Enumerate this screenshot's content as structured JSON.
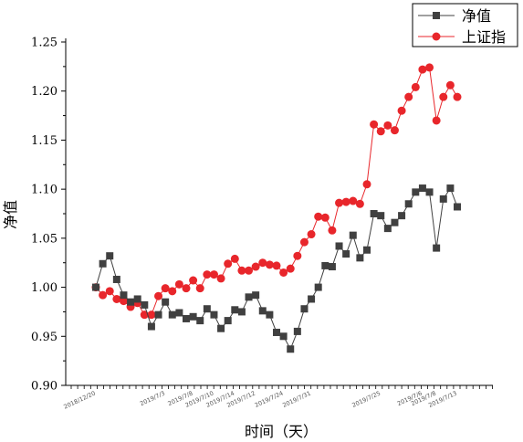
{
  "chart_data": {
    "type": "line",
    "xlabel": "时间（天）",
    "ylabel": "净值",
    "ylim": [
      0.9,
      1.25
    ],
    "y_ticks": [
      "0.90",
      "0.95",
      "1.00",
      "1.05",
      "1.10",
      "1.15",
      "1.20",
      "1.25"
    ],
    "x_tick_labels": [
      "2018/12/20",
      "2019/7/3",
      "2019/7/8",
      "2019/7/10",
      "2019/7/14",
      "2019/7/12",
      "2019/7/24",
      "2019/7/31",
      "2019/7/25",
      "2019/7/6",
      "2019/7/8",
      "2019/7/13"
    ],
    "grid": false,
    "legend_position": "top-right",
    "series": [
      {
        "name": "净值",
        "color": "#404040",
        "marker": "square",
        "values": [
          1.0,
          1.024,
          1.032,
          1.008,
          0.992,
          0.985,
          0.988,
          0.982,
          0.96,
          0.972,
          0.985,
          0.972,
          0.974,
          0.968,
          0.97,
          0.966,
          0.978,
          0.972,
          0.958,
          0.966,
          0.977,
          0.975,
          0.99,
          0.992,
          0.976,
          0.972,
          0.954,
          0.95,
          0.937,
          0.955,
          0.978,
          0.988,
          1.0,
          1.022,
          1.021,
          1.042,
          1.034,
          1.053,
          1.03,
          1.038,
          1.075,
          1.073,
          1.06,
          1.066,
          1.073,
          1.085,
          1.097,
          1.101,
          1.097,
          1.04,
          1.09,
          1.101,
          1.082
        ]
      },
      {
        "name": "上证指",
        "color": "#e8262b",
        "marker": "circle",
        "values": [
          1.0,
          0.992,
          0.996,
          0.988,
          0.986,
          0.98,
          0.984,
          0.972,
          0.972,
          0.991,
          0.999,
          0.996,
          1.003,
          0.999,
          1.007,
          0.999,
          1.013,
          1.013,
          1.009,
          1.024,
          1.029,
          1.017,
          1.017,
          1.021,
          1.025,
          1.023,
          1.022,
          1.015,
          1.019,
          1.032,
          1.046,
          1.054,
          1.072,
          1.071,
          1.058,
          1.086,
          1.087,
          1.088,
          1.085,
          1.105,
          1.166,
          1.159,
          1.165,
          1.16,
          1.18,
          1.194,
          1.204,
          1.222,
          1.224,
          1.17,
          1.194,
          1.206,
          1.194
        ]
      }
    ]
  }
}
